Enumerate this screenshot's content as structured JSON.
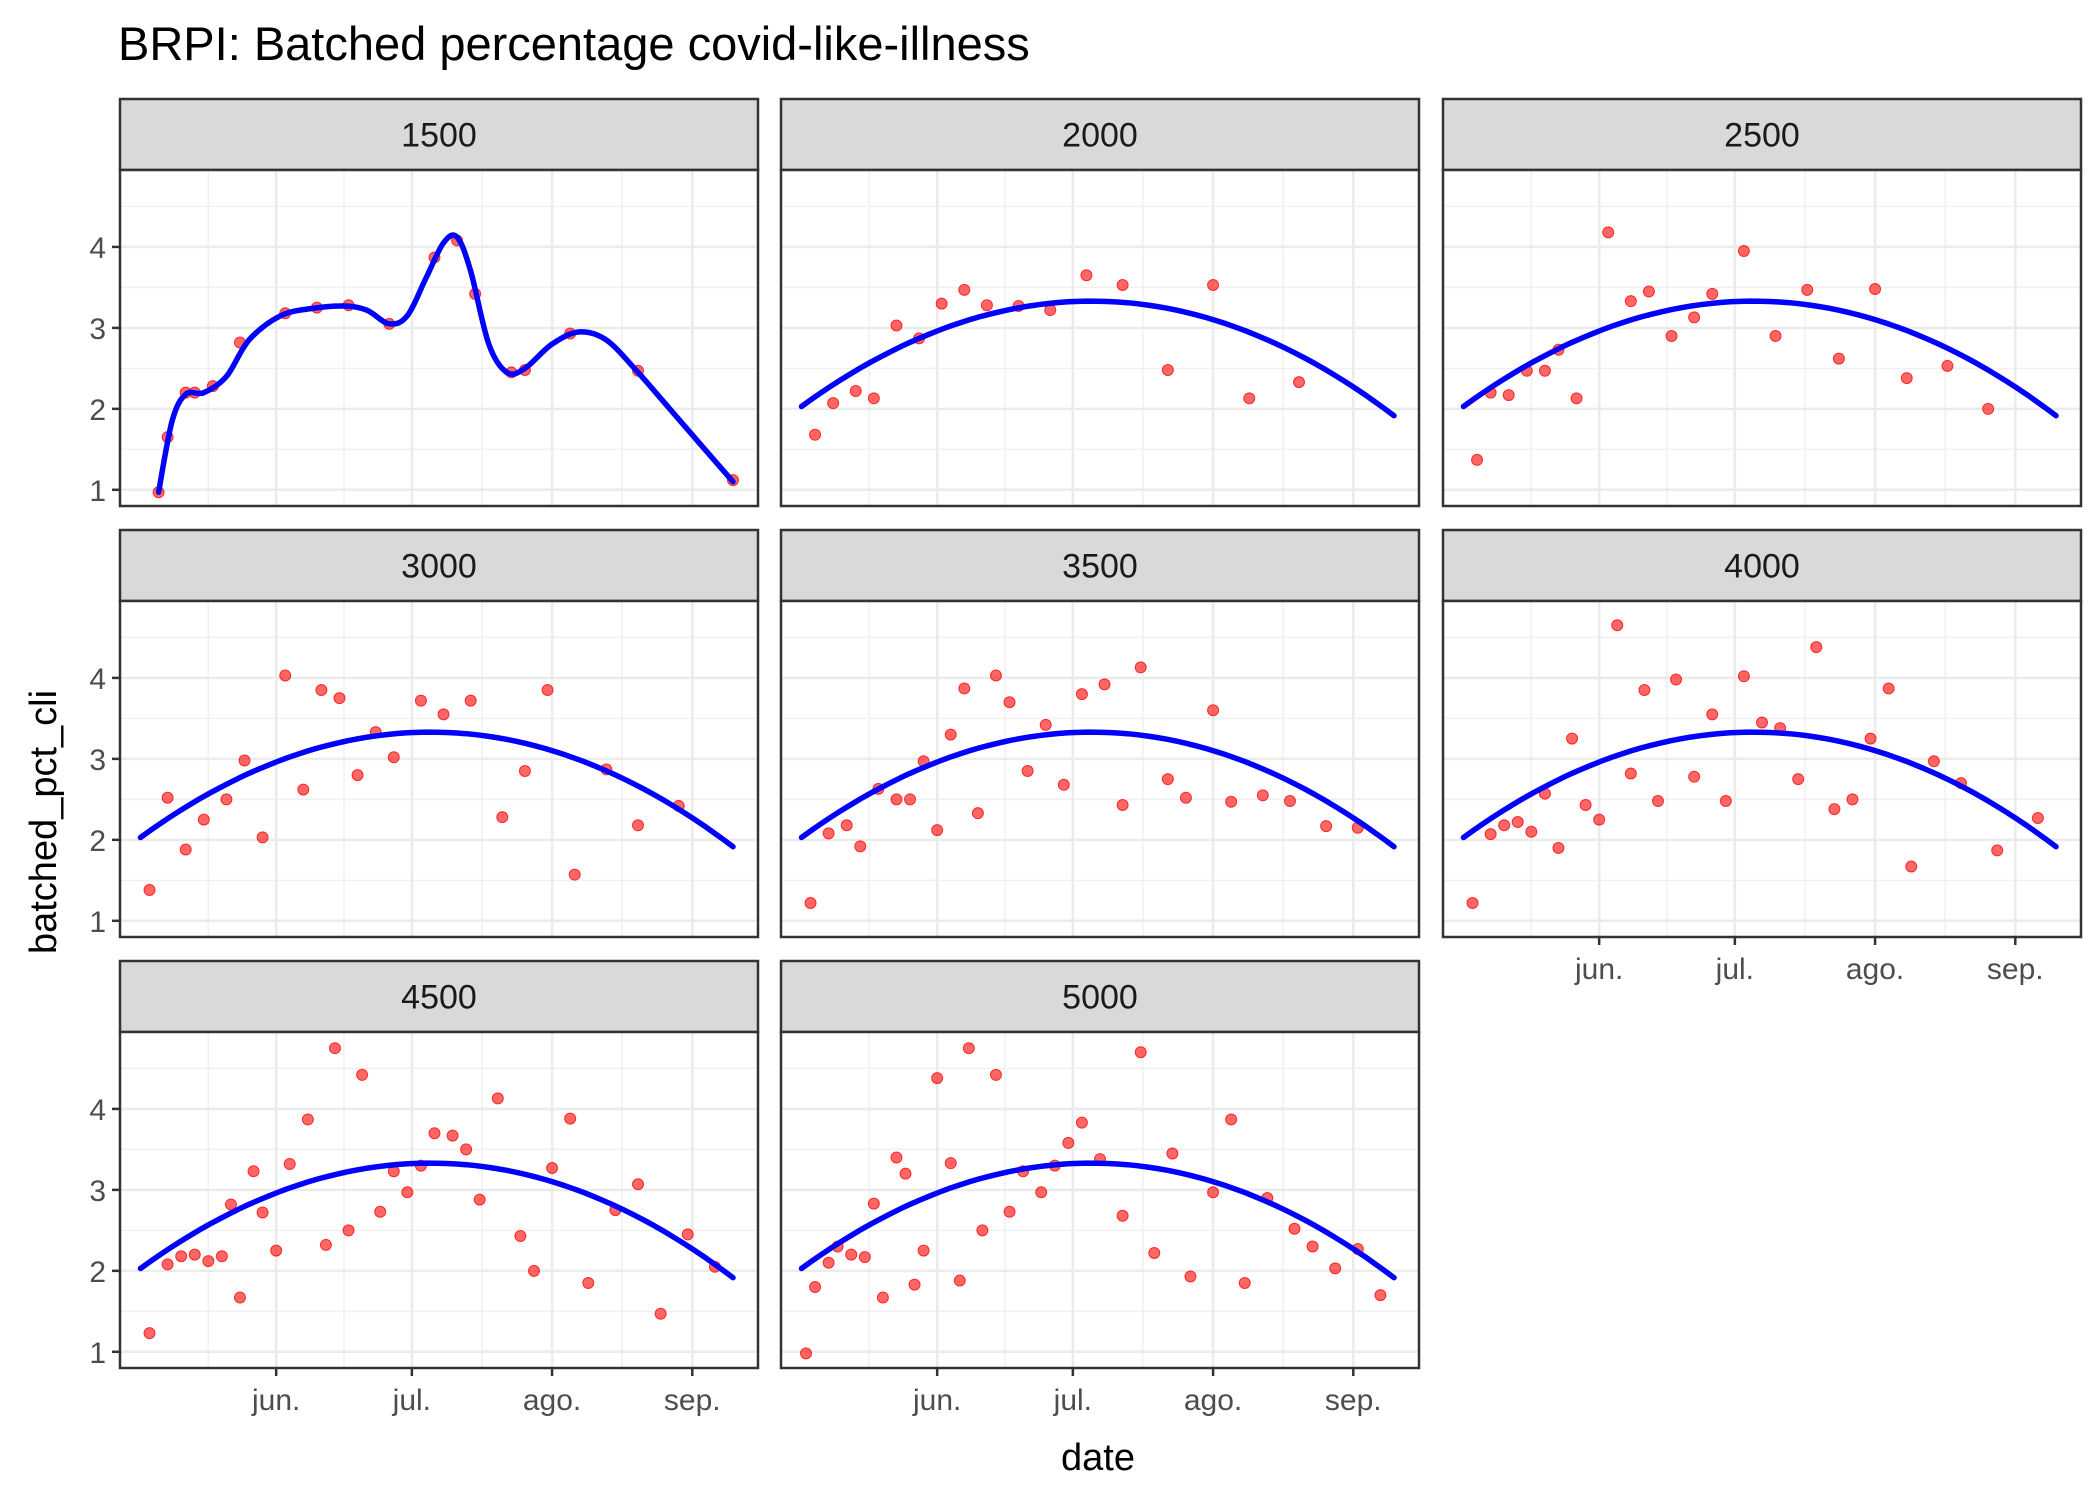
{
  "chart_data": {
    "type": "scatter",
    "title": "BRPI: Batched percentage covid-like-illness",
    "xlabel": "date",
    "ylabel": "batched_pct_cli",
    "x_range": [
      "2020-05-03",
      "2020-09-10"
    ],
    "ylim": [
      0.8,
      4.95
    ],
    "y_ticks": [
      1,
      2,
      3,
      4
    ],
    "x_ticks": [
      {
        "date": "2020-06-01",
        "label": "jun."
      },
      {
        "date": "2020-07-01",
        "label": "jul."
      },
      {
        "date": "2020-08-01",
        "label": "ago."
      },
      {
        "date": "2020-09-01",
        "label": "sep."
      }
    ],
    "grid": true,
    "point_color": "#FF0000",
    "line_color": "#0000FF",
    "facets": [
      {
        "label": "1500",
        "points": [
          [
            "2020-05-06",
            0.97
          ],
          [
            "2020-05-08",
            1.65
          ],
          [
            "2020-05-12",
            2.2
          ],
          [
            "2020-05-14",
            2.2
          ],
          [
            "2020-05-18",
            2.28
          ],
          [
            "2020-05-24",
            2.82
          ],
          [
            "2020-06-03",
            3.18
          ],
          [
            "2020-06-10",
            3.25
          ],
          [
            "2020-06-17",
            3.28
          ],
          [
            "2020-06-26",
            3.05
          ],
          [
            "2020-07-06",
            3.87
          ],
          [
            "2020-07-11",
            4.08
          ],
          [
            "2020-07-15",
            3.42
          ],
          [
            "2020-07-23",
            2.45
          ],
          [
            "2020-07-26",
            2.48
          ],
          [
            "2020-08-05",
            2.93
          ],
          [
            "2020-08-20",
            2.47
          ],
          [
            "2020-09-10",
            1.12
          ]
        ],
        "fit": [
          [
            "2020-05-06",
            0.97
          ],
          [
            "2020-05-09",
            1.85
          ],
          [
            "2020-05-12",
            2.18
          ],
          [
            "2020-05-16",
            2.2
          ],
          [
            "2020-05-21",
            2.4
          ],
          [
            "2020-05-26",
            2.85
          ],
          [
            "2020-06-02",
            3.15
          ],
          [
            "2020-06-09",
            3.24
          ],
          [
            "2020-06-16",
            3.27
          ],
          [
            "2020-06-21",
            3.22
          ],
          [
            "2020-06-26",
            3.05
          ],
          [
            "2020-06-30",
            3.15
          ],
          [
            "2020-07-04",
            3.6
          ],
          [
            "2020-07-08",
            4.05
          ],
          [
            "2020-07-11",
            4.12
          ],
          [
            "2020-07-14",
            3.7
          ],
          [
            "2020-07-18",
            2.8
          ],
          [
            "2020-07-22",
            2.45
          ],
          [
            "2020-07-26",
            2.5
          ],
          [
            "2020-08-01",
            2.8
          ],
          [
            "2020-08-07",
            2.95
          ],
          [
            "2020-08-13",
            2.85
          ],
          [
            "2020-08-20",
            2.45
          ],
          [
            "2020-08-27",
            2.0
          ],
          [
            "2020-09-03",
            1.55
          ],
          [
            "2020-09-10",
            1.1
          ]
        ]
      },
      {
        "label": "2000",
        "points": [
          [
            "2020-05-05",
            1.68
          ],
          [
            "2020-05-09",
            2.07
          ],
          [
            "2020-05-14",
            2.22
          ],
          [
            "2020-05-18",
            2.13
          ],
          [
            "2020-05-23",
            3.03
          ],
          [
            "2020-05-28",
            2.87
          ],
          [
            "2020-06-02",
            3.3
          ],
          [
            "2020-06-07",
            3.47
          ],
          [
            "2020-06-12",
            3.28
          ],
          [
            "2020-06-19",
            3.27
          ],
          [
            "2020-06-26",
            3.22
          ],
          [
            "2020-07-04",
            3.65
          ],
          [
            "2020-07-12",
            3.53
          ],
          [
            "2020-07-22",
            2.48
          ],
          [
            "2020-08-01",
            3.53
          ],
          [
            "2020-08-09",
            2.13
          ],
          [
            "2020-08-20",
            2.33
          ]
        ],
        "fit": "dome"
      },
      {
        "label": "2500",
        "points": [
          [
            "2020-05-05",
            1.37
          ],
          [
            "2020-05-08",
            2.2
          ],
          [
            "2020-05-12",
            2.17
          ],
          [
            "2020-05-16",
            2.47
          ],
          [
            "2020-05-20",
            2.47
          ],
          [
            "2020-05-23",
            2.73
          ],
          [
            "2020-05-27",
            2.13
          ],
          [
            "2020-06-03",
            4.18
          ],
          [
            "2020-06-08",
            3.33
          ],
          [
            "2020-06-12",
            3.45
          ],
          [
            "2020-06-17",
            2.9
          ],
          [
            "2020-06-22",
            3.13
          ],
          [
            "2020-06-26",
            3.42
          ],
          [
            "2020-07-03",
            3.95
          ],
          [
            "2020-07-10",
            2.9
          ],
          [
            "2020-07-17",
            3.47
          ],
          [
            "2020-07-24",
            2.62
          ],
          [
            "2020-08-01",
            3.48
          ],
          [
            "2020-08-08",
            2.38
          ],
          [
            "2020-08-17",
            2.53
          ],
          [
            "2020-08-26",
            2.0
          ]
        ],
        "fit": "dome"
      },
      {
        "label": "3000",
        "points": [
          [
            "2020-05-04",
            1.38
          ],
          [
            "2020-05-08",
            2.52
          ],
          [
            "2020-05-12",
            1.88
          ],
          [
            "2020-05-16",
            2.25
          ],
          [
            "2020-05-21",
            2.5
          ],
          [
            "2020-05-25",
            2.98
          ],
          [
            "2020-05-29",
            2.03
          ],
          [
            "2020-06-03",
            4.03
          ],
          [
            "2020-06-07",
            2.62
          ],
          [
            "2020-06-11",
            3.85
          ],
          [
            "2020-06-15",
            3.75
          ],
          [
            "2020-06-19",
            2.8
          ],
          [
            "2020-06-23",
            3.33
          ],
          [
            "2020-06-27",
            3.02
          ],
          [
            "2020-07-03",
            3.72
          ],
          [
            "2020-07-08",
            3.55
          ],
          [
            "2020-07-14",
            3.72
          ],
          [
            "2020-07-21",
            2.28
          ],
          [
            "2020-07-26",
            2.85
          ],
          [
            "2020-07-31",
            3.85
          ],
          [
            "2020-08-06",
            1.57
          ],
          [
            "2020-08-13",
            2.87
          ],
          [
            "2020-08-20",
            2.18
          ],
          [
            "2020-08-29",
            2.42
          ]
        ],
        "fit": "dome"
      },
      {
        "label": "3500",
        "points": [
          [
            "2020-05-04",
            1.22
          ],
          [
            "2020-05-08",
            2.08
          ],
          [
            "2020-05-12",
            2.18
          ],
          [
            "2020-05-15",
            1.92
          ],
          [
            "2020-05-19",
            2.63
          ],
          [
            "2020-05-23",
            2.5
          ],
          [
            "2020-05-26",
            2.5
          ],
          [
            "2020-05-29",
            2.97
          ],
          [
            "2020-06-01",
            2.12
          ],
          [
            "2020-06-04",
            3.3
          ],
          [
            "2020-06-07",
            3.87
          ],
          [
            "2020-06-10",
            2.33
          ],
          [
            "2020-06-14",
            4.03
          ],
          [
            "2020-06-17",
            3.7
          ],
          [
            "2020-06-21",
            2.85
          ],
          [
            "2020-06-25",
            3.42
          ],
          [
            "2020-06-29",
            2.68
          ],
          [
            "2020-07-03",
            3.8
          ],
          [
            "2020-07-08",
            3.92
          ],
          [
            "2020-07-12",
            2.43
          ],
          [
            "2020-07-16",
            4.13
          ],
          [
            "2020-07-22",
            2.75
          ],
          [
            "2020-07-26",
            2.52
          ],
          [
            "2020-08-01",
            3.6
          ],
          [
            "2020-08-05",
            2.47
          ],
          [
            "2020-08-12",
            2.55
          ],
          [
            "2020-08-18",
            2.48
          ],
          [
            "2020-08-26",
            2.17
          ],
          [
            "2020-09-02",
            2.15
          ]
        ],
        "fit": "dome"
      },
      {
        "label": "4000",
        "points": [
          [
            "2020-05-04",
            1.22
          ],
          [
            "2020-05-08",
            2.07
          ],
          [
            "2020-05-11",
            2.18
          ],
          [
            "2020-05-14",
            2.22
          ],
          [
            "2020-05-17",
            2.1
          ],
          [
            "2020-05-20",
            2.57
          ],
          [
            "2020-05-23",
            1.9
          ],
          [
            "2020-05-26",
            3.25
          ],
          [
            "2020-05-29",
            2.43
          ],
          [
            "2020-06-01",
            2.25
          ],
          [
            "2020-06-05",
            4.65
          ],
          [
            "2020-06-08",
            2.82
          ],
          [
            "2020-06-11",
            3.85
          ],
          [
            "2020-06-14",
            2.48
          ],
          [
            "2020-06-18",
            3.98
          ],
          [
            "2020-06-22",
            2.78
          ],
          [
            "2020-06-26",
            3.55
          ],
          [
            "2020-06-29",
            2.48
          ],
          [
            "2020-07-03",
            4.02
          ],
          [
            "2020-07-07",
            3.45
          ],
          [
            "2020-07-11",
            3.38
          ],
          [
            "2020-07-15",
            2.75
          ],
          [
            "2020-07-19",
            4.38
          ],
          [
            "2020-07-23",
            2.38
          ],
          [
            "2020-07-27",
            2.5
          ],
          [
            "2020-07-31",
            3.25
          ],
          [
            "2020-08-04",
            3.87
          ],
          [
            "2020-08-09",
            1.67
          ],
          [
            "2020-08-14",
            2.97
          ],
          [
            "2020-08-20",
            2.7
          ],
          [
            "2020-08-28",
            1.87
          ],
          [
            "2020-09-06",
            2.27
          ]
        ],
        "fit": "dome"
      },
      {
        "label": "4500",
        "points": [
          [
            "2020-05-04",
            1.23
          ],
          [
            "2020-05-08",
            2.08
          ],
          [
            "2020-05-11",
            2.18
          ],
          [
            "2020-05-14",
            2.2
          ],
          [
            "2020-05-17",
            2.12
          ],
          [
            "2020-05-20",
            2.18
          ],
          [
            "2020-05-22",
            2.82
          ],
          [
            "2020-05-24",
            1.67
          ],
          [
            "2020-05-27",
            3.23
          ],
          [
            "2020-05-29",
            2.72
          ],
          [
            "2020-06-01",
            2.25
          ],
          [
            "2020-06-04",
            3.32
          ],
          [
            "2020-06-08",
            3.87
          ],
          [
            "2020-06-12",
            2.32
          ],
          [
            "2020-06-14",
            4.75
          ],
          [
            "2020-06-17",
            2.5
          ],
          [
            "2020-06-20",
            4.42
          ],
          [
            "2020-06-24",
            2.73
          ],
          [
            "2020-06-27",
            3.23
          ],
          [
            "2020-06-30",
            2.97
          ],
          [
            "2020-07-03",
            3.3
          ],
          [
            "2020-07-06",
            3.7
          ],
          [
            "2020-07-10",
            3.67
          ],
          [
            "2020-07-13",
            3.5
          ],
          [
            "2020-07-16",
            2.88
          ],
          [
            "2020-07-20",
            4.13
          ],
          [
            "2020-07-25",
            2.43
          ],
          [
            "2020-07-28",
            2.0
          ],
          [
            "2020-08-01",
            3.27
          ],
          [
            "2020-08-05",
            3.88
          ],
          [
            "2020-08-09",
            1.85
          ],
          [
            "2020-08-15",
            2.75
          ],
          [
            "2020-08-20",
            3.07
          ],
          [
            "2020-08-25",
            1.47
          ],
          [
            "2020-08-31",
            2.45
          ],
          [
            "2020-09-06",
            2.05
          ]
        ],
        "fit": "dome"
      },
      {
        "label": "5000",
        "points": [
          [
            "2020-05-03",
            0.98
          ],
          [
            "2020-05-05",
            1.8
          ],
          [
            "2020-05-08",
            2.1
          ],
          [
            "2020-05-10",
            2.3
          ],
          [
            "2020-05-13",
            2.2
          ],
          [
            "2020-05-16",
            2.17
          ],
          [
            "2020-05-18",
            2.83
          ],
          [
            "2020-05-20",
            1.67
          ],
          [
            "2020-05-23",
            3.4
          ],
          [
            "2020-05-25",
            3.2
          ],
          [
            "2020-05-27",
            1.83
          ],
          [
            "2020-05-29",
            2.25
          ],
          [
            "2020-06-01",
            4.38
          ],
          [
            "2020-06-04",
            3.33
          ],
          [
            "2020-06-06",
            1.88
          ],
          [
            "2020-06-08",
            4.75
          ],
          [
            "2020-06-11",
            2.5
          ],
          [
            "2020-06-14",
            4.42
          ],
          [
            "2020-06-17",
            2.73
          ],
          [
            "2020-06-20",
            3.23
          ],
          [
            "2020-06-24",
            2.97
          ],
          [
            "2020-06-27",
            3.3
          ],
          [
            "2020-06-30",
            3.58
          ],
          [
            "2020-07-03",
            3.83
          ],
          [
            "2020-07-07",
            3.38
          ],
          [
            "2020-07-12",
            2.68
          ],
          [
            "2020-07-16",
            4.7
          ],
          [
            "2020-07-19",
            2.22
          ],
          [
            "2020-07-23",
            3.45
          ],
          [
            "2020-07-27",
            1.93
          ],
          [
            "2020-08-01",
            2.97
          ],
          [
            "2020-08-05",
            3.87
          ],
          [
            "2020-08-08",
            1.85
          ],
          [
            "2020-08-13",
            2.9
          ],
          [
            "2020-08-19",
            2.52
          ],
          [
            "2020-08-23",
            2.3
          ],
          [
            "2020-08-28",
            2.03
          ],
          [
            "2020-09-02",
            2.27
          ],
          [
            "2020-09-07",
            1.7
          ]
        ],
        "fit": "dome"
      }
    ]
  }
}
